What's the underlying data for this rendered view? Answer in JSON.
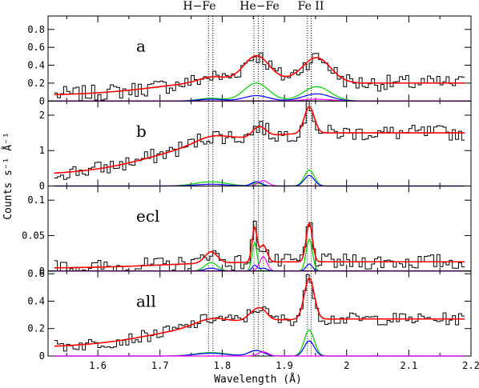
{
  "chart_data": {
    "type": "line",
    "top_labels": [
      "H−Fe",
      "He−Fe",
      "Fe II"
    ],
    "xlabel": "Wavelength (Å)",
    "ylabel": "Counts s⁻¹ Å⁻¹",
    "xlim": [
      1.52,
      2.2
    ],
    "xticks": [
      "1.6",
      "1.7",
      "1.8",
      "1.9",
      "2",
      "2.1",
      "2.2"
    ],
    "line_markers": [
      1.778,
      1.785,
      1.851,
      1.858,
      1.866,
      1.937,
      1.943
    ],
    "colors": {
      "data": "#000000",
      "total_model": "#ff0000",
      "component_green": "#00d000",
      "component_blue": "#0000ff",
      "component_magenta": "#ff00ff",
      "marker": "#000000"
    },
    "panels": [
      {
        "label": "a",
        "ylim": [
          0,
          0.95
        ],
        "yticks": [
          "0",
          "0.2",
          "0.4",
          "0.6",
          "0.8"
        ],
        "continuum": {
          "a": 0.06,
          "b": 0.26,
          "peak_x": 1.86,
          "width": 0.16,
          "tail": 0.2
        },
        "lines": [
          {
            "center": 1.782,
            "green": 0.03,
            "blue": 0.02,
            "magenta": 0.0,
            "width": 0.02
          },
          {
            "center": 1.855,
            "green": 0.2,
            "blue": 0.06,
            "magenta": 0.0,
            "width": 0.02
          },
          {
            "center": 1.952,
            "green": 0.16,
            "blue": 0.08,
            "magenta": 0.02,
            "width": 0.022
          }
        ],
        "noise": 0.09
      },
      {
        "label": "b",
        "ylim": [
          0,
          2.4
        ],
        "yticks": [
          "0",
          "1",
          "2"
        ],
        "continuum": {
          "a": 0.3,
          "b": 1.47,
          "peak_x": 1.85,
          "width": 0.12,
          "tail": 1.5
        },
        "lines": [
          {
            "center": 1.782,
            "green": 0.12,
            "blue": 0.05,
            "magenta": 0.0,
            "width": 0.025
          },
          {
            "center": 1.855,
            "green": 0.08,
            "blue": 0.12,
            "magenta": 0.0,
            "width": 0.008
          },
          {
            "center": 1.866,
            "green": 0.0,
            "blue": 0.0,
            "magenta": 0.15,
            "width": 0.008
          },
          {
            "center": 1.94,
            "green": 0.45,
            "blue": 0.3,
            "magenta": 0.0,
            "width": 0.008
          }
        ],
        "noise": 0.22
      },
      {
        "label": "ecl",
        "ylim": [
          0,
          0.12
        ],
        "yticks": [
          "0",
          "0.05",
          "0.1"
        ],
        "continuum": {
          "a": 0.004,
          "b": 0.013,
          "peak_x": 1.85,
          "width": 0.1,
          "tail": 0.013
        },
        "lines": [
          {
            "center": 1.782,
            "green": 0.012,
            "blue": 0.004,
            "magenta": 0.0,
            "width": 0.01
          },
          {
            "center": 1.852,
            "green": 0.04,
            "blue": 0.008,
            "magenta": 0.0,
            "width": 0.004
          },
          {
            "center": 1.866,
            "green": 0.0,
            "blue": 0.004,
            "magenta": 0.02,
            "width": 0.006
          },
          {
            "center": 1.94,
            "green": 0.045,
            "blue": 0.01,
            "magenta": 0.0,
            "width": 0.005
          }
        ],
        "noise": 0.011
      },
      {
        "label": "all",
        "ylim": [
          0,
          0.62
        ],
        "yticks": [
          "0",
          "0.2",
          "0.4",
          "0.6"
        ],
        "continuum": {
          "a": 0.06,
          "b": 0.27,
          "peak_x": 1.86,
          "width": 0.14,
          "tail": 0.27
        },
        "lines": [
          {
            "center": 1.782,
            "green": 0.025,
            "blue": 0.02,
            "magenta": 0.0,
            "width": 0.025
          },
          {
            "center": 1.855,
            "green": 0.04,
            "blue": 0.04,
            "magenta": 0.0,
            "width": 0.012
          },
          {
            "center": 1.866,
            "green": 0.0,
            "blue": 0.0,
            "magenta": 0.03,
            "width": 0.008
          },
          {
            "center": 1.94,
            "green": 0.19,
            "blue": 0.11,
            "magenta": 0.0,
            "width": 0.008
          }
        ],
        "noise": 0.045
      }
    ]
  }
}
